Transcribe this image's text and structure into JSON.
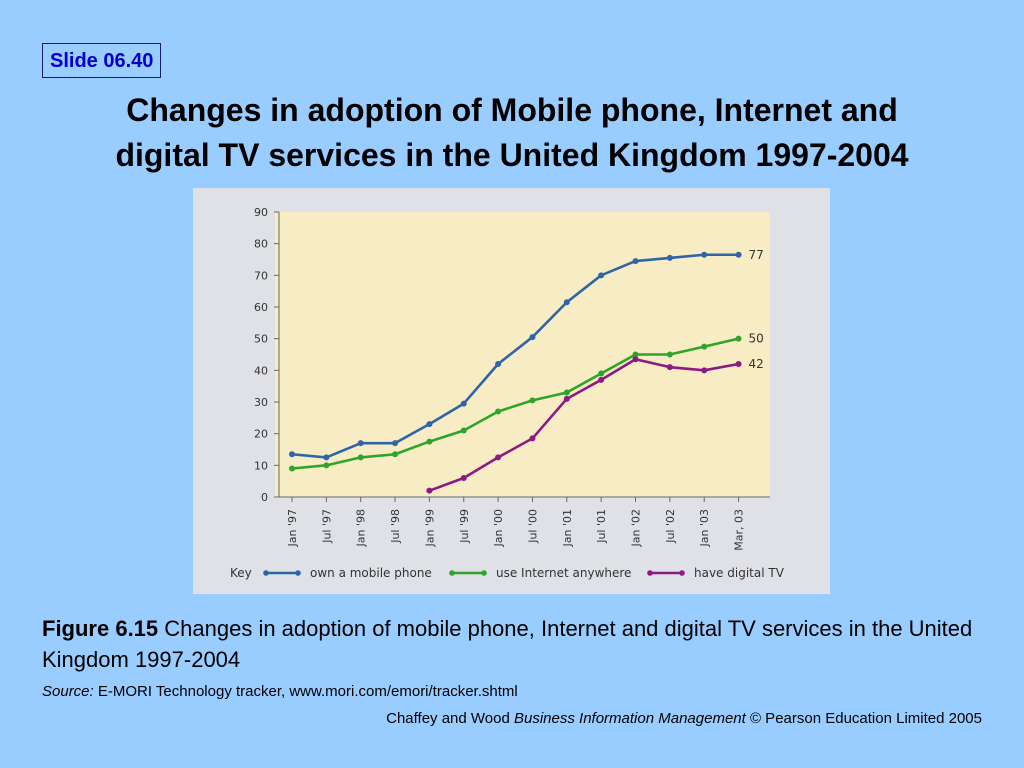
{
  "slide": {
    "number": "Slide 06.40"
  },
  "title": {
    "line1": "Changes in adoption of Mobile phone, Internet and",
    "line2": "digital TV services in the United Kingdom 1997-2004"
  },
  "caption": {
    "figure_label": "Figure 6.15",
    "text": " Changes in adoption of mobile phone, Internet and digital TV services in the United Kingdom 1997-2004"
  },
  "source": {
    "label": "Source:",
    "text": " E-MORI Technology tracker, www.mori.com/emori/tracker.shtml"
  },
  "credit": {
    "authors": "Chaffey and Wood ",
    "book": "Business Information Management",
    "rights": " © Pearson Education Limited 2005"
  },
  "chart_data": {
    "type": "line",
    "categories": [
      "Jan '97",
      "Jul '97",
      "Jan '98",
      "Jul '98",
      "Jan '99",
      "Jul '99",
      "Jan '00",
      "Jul '00",
      "Jan '01",
      "Jul '01",
      "Jan '02",
      "Jul '02",
      "Jan '03",
      "Mar, 03"
    ],
    "ylim": [
      0,
      90
    ],
    "yticks": [
      0,
      10,
      20,
      30,
      40,
      50,
      60,
      70,
      80,
      90
    ],
    "grid": false,
    "key_label": "Key",
    "series": [
      {
        "name": "own a mobile phone",
        "color": "#2e64a8",
        "end_label": "77",
        "values": [
          13.5,
          12.5,
          17,
          17,
          23,
          29.5,
          42,
          50.5,
          61.5,
          70,
          74.5,
          75.5,
          76.5,
          76.5
        ]
      },
      {
        "name": "use Internet anywhere",
        "color": "#2ea52a",
        "end_label": "50",
        "values": [
          9,
          10,
          12.5,
          13.5,
          17.5,
          21,
          27,
          30.5,
          33,
          39,
          45,
          45,
          47.5,
          50
        ]
      },
      {
        "name": "have digital TV",
        "color": "#8b1a85",
        "end_label": "42",
        "values": [
          null,
          null,
          null,
          null,
          2,
          6,
          12.5,
          18.5,
          31,
          37,
          43.5,
          41,
          40,
          42
        ]
      }
    ]
  }
}
